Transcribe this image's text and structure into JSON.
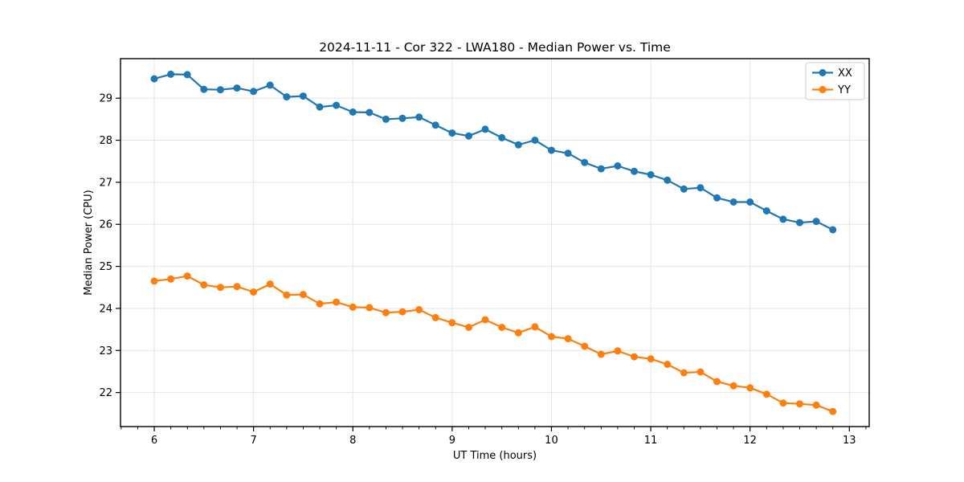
{
  "chart_data": {
    "type": "line",
    "title": "2024-11-11 - Cor 322 - LWA180 - Median Power vs. Time",
    "xlabel": "UT Time (hours)",
    "ylabel": "Median Power (CPU)",
    "xlim": [
      5.66,
      13.2
    ],
    "ylim": [
      21.19,
      29.94
    ],
    "xticks": [
      6,
      7,
      8,
      9,
      10,
      11,
      12,
      13
    ],
    "yticks": [
      22,
      23,
      24,
      25,
      26,
      27,
      28,
      29
    ],
    "x_minor_step": 0.16667,
    "grid": true,
    "grid_color": "#e5e5e5",
    "legend_position": "upper right",
    "x": [
      6.0,
      6.1667,
      6.3333,
      6.5,
      6.6667,
      6.8333,
      7.0,
      7.1667,
      7.3333,
      7.5,
      7.6667,
      7.8333,
      8.0,
      8.1667,
      8.3333,
      8.5,
      8.6667,
      8.8333,
      9.0,
      9.1667,
      9.3333,
      9.5,
      9.6667,
      9.8333,
      10.0,
      10.1667,
      10.3333,
      10.5,
      10.6667,
      10.8333,
      11.0,
      11.1667,
      11.3333,
      11.5,
      11.6667,
      11.8333,
      12.0,
      12.1667,
      12.3333,
      12.5,
      12.6667,
      12.8333
    ],
    "series": [
      {
        "name": "XX",
        "color": "#1f77b4",
        "marker": "circle",
        "values": [
          29.46,
          29.57,
          29.56,
          29.21,
          29.2,
          29.24,
          29.16,
          29.31,
          29.03,
          29.05,
          28.79,
          28.83,
          28.67,
          28.66,
          28.5,
          28.52,
          28.55,
          28.36,
          28.17,
          28.1,
          28.26,
          28.06,
          27.89,
          28.0,
          27.76,
          27.69,
          27.47,
          27.32,
          27.39,
          27.26,
          27.18,
          27.05,
          26.84,
          26.87,
          26.63,
          26.53,
          26.53,
          26.32,
          26.12,
          26.04,
          26.07,
          25.87
        ]
      },
      {
        "name": "YY",
        "color": "#ff7f0e",
        "marker": "circle",
        "values": [
          24.65,
          24.7,
          24.77,
          24.56,
          24.5,
          24.52,
          24.39,
          24.58,
          24.32,
          24.33,
          24.11,
          24.15,
          24.03,
          24.02,
          23.9,
          23.92,
          23.97,
          23.78,
          23.66,
          23.55,
          23.73,
          23.55,
          23.42,
          23.56,
          23.33,
          23.28,
          23.1,
          22.91,
          22.99,
          22.85,
          22.8,
          22.67,
          22.47,
          22.49,
          22.26,
          22.16,
          22.11,
          21.96,
          21.75,
          21.73,
          21.7,
          21.55
        ]
      }
    ]
  }
}
